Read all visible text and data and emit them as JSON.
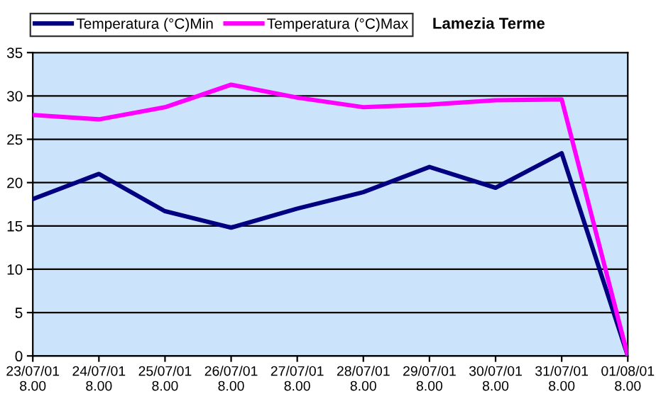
{
  "chart_data": {
    "type": "line",
    "title": "Lamezia Terme",
    "categories": [
      "23/07/01\n8.00",
      "24/07/01\n8.00",
      "25/07/01\n8.00",
      "26/07/01\n8.00",
      "27/07/01\n8.00",
      "28/07/01\n8.00",
      "29/07/01\n8.00",
      "30/07/01\n8.00",
      "31/07/01\n8.00",
      "01/08/01\n8.00"
    ],
    "series": [
      {
        "name": "Temperatura (°C)Min",
        "color": "#000080",
        "values": [
          18.1,
          21.0,
          16.7,
          14.8,
          17.0,
          18.9,
          21.8,
          19.4,
          23.4,
          0
        ]
      },
      {
        "name": "Temperatura (°C)Max",
        "color": "#ff00ff",
        "values": [
          27.8,
          27.3,
          28.7,
          31.3,
          29.8,
          28.7,
          29.0,
          29.5,
          29.6,
          0
        ]
      }
    ],
    "ylim": [
      0,
      35
    ],
    "yticks": [
      0,
      5,
      10,
      15,
      20,
      25,
      30,
      35
    ],
    "grid": "y",
    "legend": "top left",
    "marker": "none",
    "line_style": "solid"
  }
}
